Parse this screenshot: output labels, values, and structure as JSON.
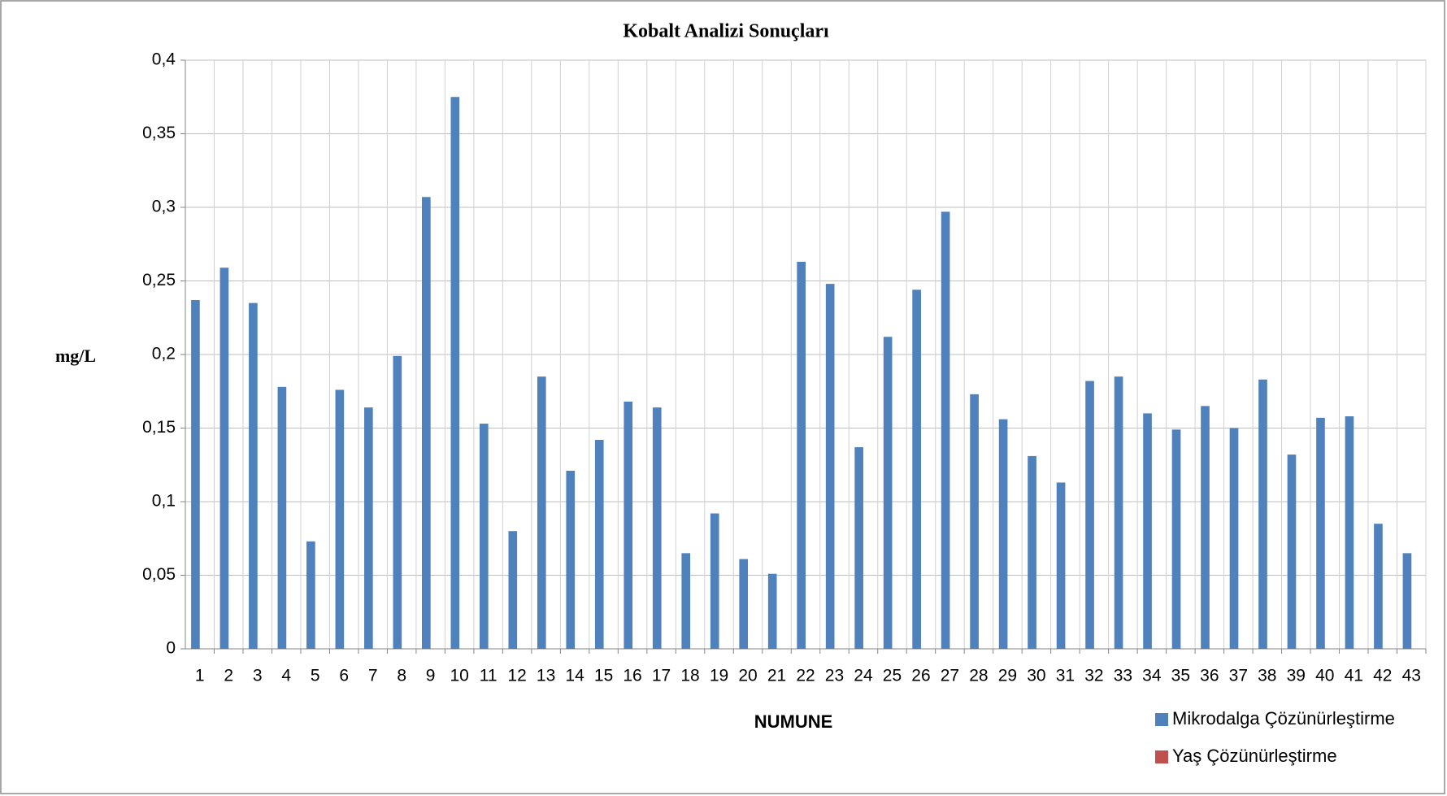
{
  "chart_data": {
    "type": "bar",
    "title": "Kobalt Analizi Sonuçları",
    "y_label": "mg/L",
    "x_label": "NUMUNE",
    "categories": [
      "1",
      "2",
      "3",
      "4",
      "5",
      "6",
      "7",
      "8",
      "9",
      "10",
      "11",
      "12",
      "13",
      "14",
      "15",
      "16",
      "17",
      "18",
      "19",
      "20",
      "21",
      "22",
      "23",
      "24",
      "25",
      "26",
      "27",
      "28",
      "29",
      "30",
      "31",
      "32",
      "33",
      "34",
      "35",
      "36",
      "37",
      "38",
      "39",
      "40",
      "41",
      "42",
      "43"
    ],
    "series": [
      {
        "name": "Mikrodalga Çözünürleştirme",
        "color": "#4f81bd",
        "values": [
          0.237,
          0.259,
          0.235,
          0.178,
          0.073,
          0.176,
          0.164,
          0.199,
          0.307,
          0.375,
          0.153,
          0.08,
          0.185,
          0.121,
          0.142,
          0.168,
          0.164,
          0.065,
          0.092,
          0.061,
          0.051,
          0.263,
          0.248,
          0.137,
          0.212,
          0.244,
          0.297,
          0.173,
          0.156,
          0.131,
          0.113,
          0.182,
          0.185,
          0.16,
          0.149,
          0.165,
          0.15,
          0.183,
          0.132,
          0.157,
          0.158,
          0.085,
          0.065
        ]
      },
      {
        "name": "Yaş Çözünürleştirme",
        "color": "#c0504d",
        "values": [
          null,
          null,
          null,
          null,
          null,
          null,
          null,
          null,
          null,
          null,
          null,
          null,
          null,
          null,
          null,
          null,
          null,
          null,
          null,
          null,
          null,
          null,
          null,
          null,
          null,
          null,
          null,
          null,
          null,
          null,
          null,
          null,
          null,
          null,
          null,
          null,
          null,
          null,
          null,
          null,
          null,
          null,
          null
        ]
      }
    ],
    "ylim": [
      0,
      0.4
    ],
    "yticks": [
      0,
      {
        "value": 0.05,
        "label": "0,05"
      },
      {
        "value": 0.1,
        "label": "0,1"
      },
      {
        "value": 0.15,
        "label": "0,15"
      },
      {
        "value": 0.2,
        "label": "0,2"
      },
      {
        "value": 0.25,
        "label": "0,25"
      },
      {
        "value": 0.3,
        "label": "0,3"
      },
      {
        "value": 0.35,
        "label": "0,35"
      },
      {
        "value": 0.4,
        "label": "0,4"
      }
    ],
    "grid": true,
    "legend": "bottom-right"
  }
}
